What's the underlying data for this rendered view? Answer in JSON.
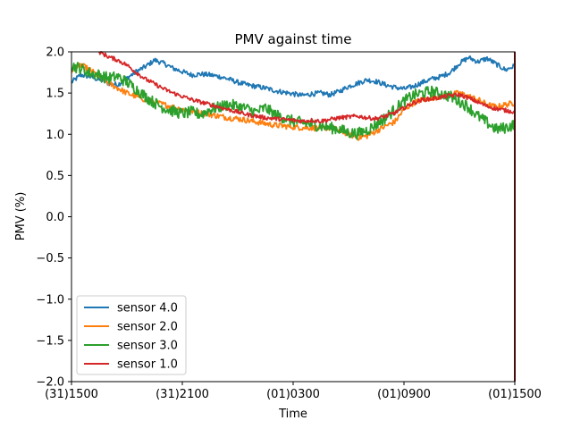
{
  "chart_data": {
    "type": "line",
    "title": "PMV against  time",
    "xlabel": "Time",
    "ylabel": "PMV (%)",
    "ylim": [
      -2.0,
      2.0
    ],
    "xlim": [
      0,
      24
    ],
    "yticks": [
      "−2.0",
      "−1.5",
      "−1.0",
      "−0.5",
      "0.0",
      "0.5",
      "1.0",
      "1.5",
      "2.0"
    ],
    "ytick_values": [
      -2.0,
      -1.5,
      -1.0,
      -0.5,
      0.0,
      0.5,
      1.0,
      1.5,
      2.0
    ],
    "xticks": [
      "(31)1500",
      "(31)2100",
      "(01)0300",
      "(01)0900",
      "(01)1500"
    ],
    "xtick_values": [
      0,
      6,
      12,
      18,
      24
    ],
    "legend_position": "lower-left",
    "series": [
      {
        "name": "sensor 4.0",
        "color": "#1f77b4",
        "x": [
          0,
          0.5,
          1,
          1.5,
          2,
          2.5,
          3,
          3.5,
          4,
          4.5,
          5,
          5.5,
          6,
          6.5,
          7,
          7.5,
          8,
          8.5,
          9,
          9.5,
          10,
          10.5,
          11,
          11.5,
          12,
          12.5,
          13,
          13.5,
          14,
          14.5,
          15,
          15.5,
          16,
          16.5,
          17,
          17.5,
          18,
          18.5,
          19,
          19.5,
          20,
          20.5,
          21,
          21.5,
          22,
          22.5,
          23,
          23.5,
          24
        ],
        "values": [
          1.63,
          1.72,
          1.7,
          1.66,
          1.62,
          1.6,
          1.68,
          1.76,
          1.82,
          1.9,
          1.86,
          1.8,
          1.76,
          1.72,
          1.73,
          1.72,
          1.7,
          1.67,
          1.63,
          1.6,
          1.58,
          1.56,
          1.53,
          1.51,
          1.49,
          1.47,
          1.49,
          1.5,
          1.48,
          1.52,
          1.58,
          1.62,
          1.66,
          1.64,
          1.6,
          1.57,
          1.55,
          1.58,
          1.63,
          1.67,
          1.7,
          1.75,
          1.86,
          1.93,
          1.88,
          1.92,
          1.85,
          1.78,
          1.83
        ]
      },
      {
        "name": "sensor 2.0",
        "color": "#ff7f0e",
        "x": [
          0,
          0.5,
          1,
          1.5,
          2,
          2.5,
          3,
          3.5,
          4,
          4.5,
          5,
          5.5,
          6,
          6.5,
          7,
          7.5,
          8,
          8.5,
          9,
          9.5,
          10,
          10.5,
          11,
          11.5,
          12,
          12.5,
          13,
          13.5,
          14,
          14.5,
          15,
          15.5,
          16,
          16.5,
          17,
          17.5,
          18,
          18.5,
          19,
          19.5,
          20,
          20.5,
          21,
          21.5,
          22,
          22.5,
          23,
          23.5,
          24
        ],
        "values": [
          1.78,
          1.84,
          1.78,
          1.7,
          1.62,
          1.56,
          1.5,
          1.46,
          1.42,
          1.39,
          1.36,
          1.33,
          1.3,
          1.28,
          1.26,
          1.24,
          1.22,
          1.2,
          1.19,
          1.17,
          1.15,
          1.13,
          1.11,
          1.1,
          1.09,
          1.08,
          1.08,
          1.07,
          1.08,
          1.05,
          1.0,
          0.96,
          0.98,
          1.04,
          1.1,
          1.15,
          1.3,
          1.38,
          1.42,
          1.44,
          1.46,
          1.48,
          1.5,
          1.46,
          1.42,
          1.36,
          1.33,
          1.36,
          1.38
        ]
      },
      {
        "name": "sensor 3.0",
        "color": "#2ca02c",
        "x": [
          0,
          0.5,
          1,
          1.5,
          2,
          2.5,
          3,
          3.5,
          4,
          4.5,
          5,
          5.5,
          6,
          6.5,
          7,
          7.5,
          8,
          8.5,
          9,
          9.5,
          10,
          10.5,
          11,
          11.5,
          12,
          12.5,
          13,
          13.5,
          14,
          14.5,
          15,
          15.5,
          16,
          16.5,
          17,
          17.5,
          18,
          18.5,
          19,
          19.5,
          20,
          20.5,
          21,
          21.5,
          22,
          22.5,
          23,
          23.5,
          24
        ],
        "values": [
          1.83,
          1.8,
          1.74,
          1.72,
          1.68,
          1.7,
          1.63,
          1.55,
          1.46,
          1.38,
          1.32,
          1.28,
          1.25,
          1.27,
          1.24,
          1.3,
          1.33,
          1.36,
          1.34,
          1.31,
          1.27,
          1.32,
          1.24,
          1.2,
          1.16,
          1.14,
          1.12,
          1.1,
          1.08,
          1.06,
          1.02,
          1.01,
          1.05,
          1.12,
          1.2,
          1.3,
          1.4,
          1.47,
          1.5,
          1.52,
          1.49,
          1.46,
          1.4,
          1.33,
          1.22,
          1.14,
          1.06,
          1.08,
          1.12
        ]
      },
      {
        "name": "sensor 1.0",
        "color": "#d62728",
        "x": [
          1.5,
          2,
          2.5,
          3,
          3.5,
          4,
          4.5,
          5,
          5.5,
          6,
          6.5,
          7,
          7.5,
          8,
          8.5,
          9,
          9.5,
          10,
          10.5,
          11,
          11.5,
          12,
          12.5,
          13,
          13.5,
          14,
          14.5,
          15,
          15.5,
          16,
          16.5,
          17,
          17.5,
          18,
          18.5,
          19,
          19.5,
          20,
          20.5,
          21,
          21.5,
          22,
          22.5,
          23,
          23.5,
          24
        ],
        "values": [
          2.0,
          1.94,
          1.9,
          1.84,
          1.75,
          1.67,
          1.61,
          1.55,
          1.5,
          1.46,
          1.42,
          1.39,
          1.36,
          1.33,
          1.3,
          1.27,
          1.24,
          1.22,
          1.2,
          1.19,
          1.18,
          1.17,
          1.16,
          1.17,
          1.16,
          1.18,
          1.2,
          1.21,
          1.22,
          1.2,
          1.19,
          1.22,
          1.26,
          1.32,
          1.38,
          1.42,
          1.43,
          1.45,
          1.47,
          1.48,
          1.44,
          1.39,
          1.34,
          1.31,
          1.29,
          1.27
        ]
      }
    ]
  }
}
